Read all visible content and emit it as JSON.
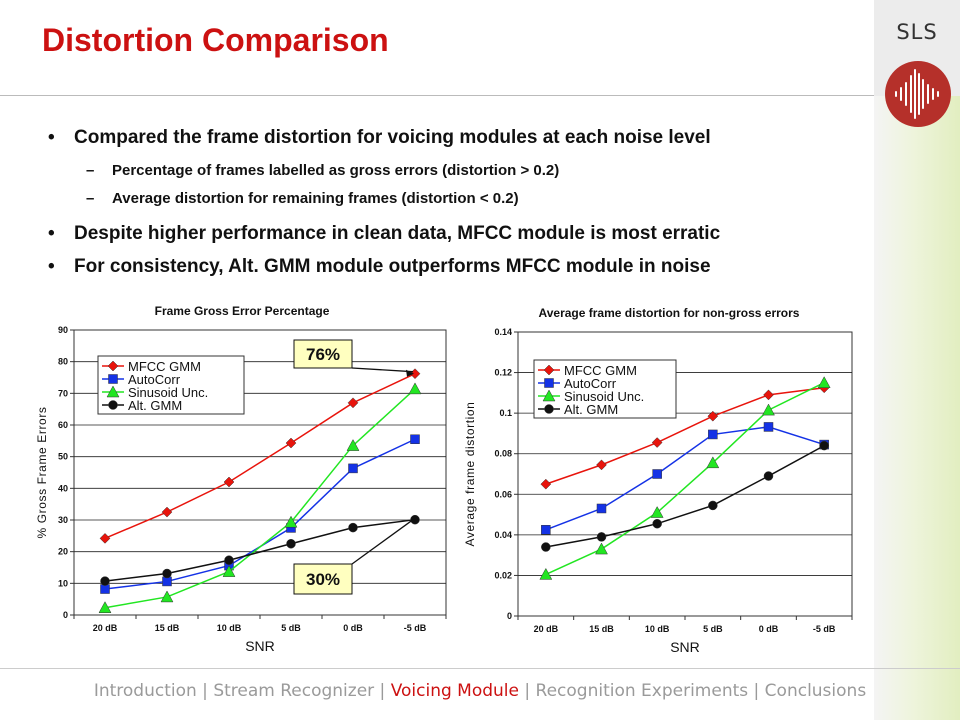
{
  "header": {
    "title": "Distortion Comparison",
    "brand": "SLS"
  },
  "bullets": [
    {
      "level": 1,
      "text": "Compared the frame distortion for voicing modules at each noise level"
    },
    {
      "level": 2,
      "text": "Percentage of frames labelled as gross errors (distortion > 0.2)"
    },
    {
      "level": 2,
      "text": "Average distortion for remaining frames (distortion < 0.2)"
    },
    {
      "level": 1,
      "text": "Despite higher performance in clean data, MFCC module is most erratic"
    },
    {
      "level": 1,
      "text": "For consistency, Alt. GMM module outperforms MFCC module in noise"
    }
  ],
  "bullet_marks": {
    "level1": "•",
    "level2": "–"
  },
  "colors": {
    "title": "#cc1111",
    "mfcc": "#e8140c",
    "autocorr": "#1432e6",
    "sinusoid": "#22e622",
    "altgmm": "#111111",
    "callout_fill": "#ffffc0"
  },
  "chart_data": [
    {
      "type": "line",
      "title": "Frame Gross Error Percentage",
      "xlabel": "SNR",
      "ylabel": "% Gross Frame Errors",
      "categories": [
        "20 dB",
        "15 dB",
        "10 dB",
        "5 dB",
        "0 dB",
        "-5 dB"
      ],
      "ylim": [
        0,
        90
      ],
      "yticks": [
        "0",
        "10",
        "20",
        "30",
        "40",
        "50",
        "60",
        "70",
        "80",
        "90"
      ],
      "grid": true,
      "legend": "top-left",
      "series": [
        {
          "name": "MFCC GMM",
          "marker": "diamond",
          "values": [
            24.2,
            32.5,
            42,
            54.3,
            67,
            76.2
          ]
        },
        {
          "name": "AutoCorr",
          "marker": "square",
          "values": [
            8.2,
            10.6,
            15.6,
            27.5,
            46.3,
            55.5
          ]
        },
        {
          "name": "Sinusoid Unc.",
          "marker": "triangle",
          "values": [
            2.3,
            5.7,
            13.7,
            29.3,
            53.5,
            71.4
          ]
        },
        {
          "name": "Alt. GMM",
          "marker": "circle",
          "values": [
            10.7,
            13.1,
            17.3,
            22.5,
            27.6,
            30.1
          ]
        }
      ],
      "annotations": [
        {
          "text": "76%",
          "category": "-5 dB",
          "series": "MFCC GMM"
        },
        {
          "text": "30%",
          "category": "-5 dB",
          "series": "Alt. GMM"
        }
      ]
    },
    {
      "type": "line",
      "title": "Average frame distortion for non-gross errors",
      "xlabel": "SNR",
      "ylabel": "Average frame distortion",
      "categories": [
        "20 dB",
        "15 dB",
        "10 dB",
        "5 dB",
        "0 dB",
        "-5 dB"
      ],
      "ylim": [
        0,
        0.14
      ],
      "yticks": [
        "0",
        "0.02",
        "0.04",
        "0.06",
        "0.08",
        "0.1",
        "0.12",
        "0.14"
      ],
      "grid": true,
      "legend": "top-left",
      "series": [
        {
          "name": "MFCC GMM",
          "marker": "diamond",
          "values": [
            0.065,
            0.0745,
            0.0855,
            0.0985,
            0.109,
            0.1125
          ]
        },
        {
          "name": "AutoCorr",
          "marker": "square",
          "values": [
            0.0425,
            0.053,
            0.07,
            0.0895,
            0.0932,
            0.0845
          ]
        },
        {
          "name": "Sinusoid Unc.",
          "marker": "triangle",
          "values": [
            0.0205,
            0.033,
            0.051,
            0.0755,
            0.1015,
            0.115
          ]
        },
        {
          "name": "Alt. GMM",
          "marker": "circle",
          "values": [
            0.034,
            0.039,
            0.0455,
            0.0545,
            0.069,
            0.084
          ]
        }
      ]
    }
  ],
  "footer": {
    "separator": " | ",
    "items": [
      {
        "label": "Introduction",
        "active": false
      },
      {
        "label": "Stream Recognizer",
        "active": false
      },
      {
        "label": "Voicing Module",
        "active": true
      },
      {
        "label": "Recognition Experiments",
        "active": false
      },
      {
        "label": "Conclusions",
        "active": false
      }
    ]
  }
}
